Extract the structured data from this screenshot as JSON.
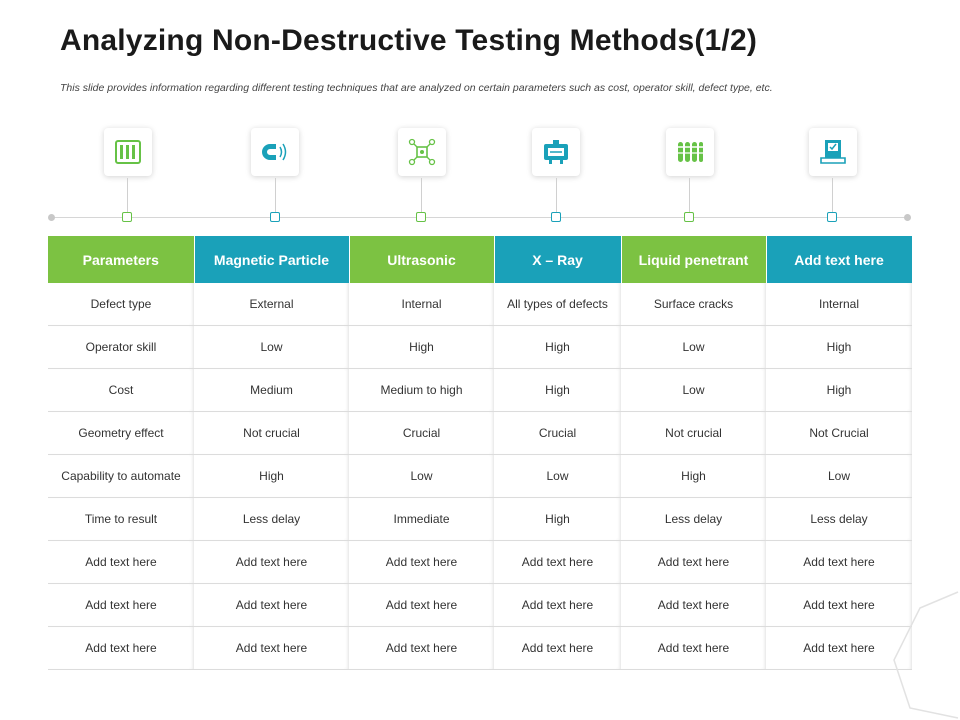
{
  "title": "Analyzing Non-Destructive Testing Methods(1/2)",
  "subtitle": "This slide provides information regarding different testing techniques that are analyzed on certain parameters such as cost, operator skill, defect type, etc.",
  "colors": {
    "green": "#7cc242",
    "teal": "#1aa1b9",
    "green_icon": "#66c246",
    "teal_icon": "#1aa1b9"
  },
  "icons": [
    "panel-icon",
    "magnet-icon",
    "ultrasonic-icon",
    "xray-machine-icon",
    "test-tubes-icon",
    "report-icon"
  ],
  "table": {
    "headers": [
      "Parameters",
      "Magnetic Particle",
      "Ultrasonic",
      "X – Ray",
      "Liquid penetrant",
      "Add text here"
    ],
    "rows": [
      [
        "Defect type",
        "External",
        "Internal",
        "All types of defects",
        "Surface cracks",
        "Internal"
      ],
      [
        "Operator skill",
        "Low",
        "High",
        "High",
        "Low",
        "High"
      ],
      [
        "Cost",
        "Medium",
        "Medium to high",
        "High",
        "Low",
        "High"
      ],
      [
        "Geometry effect",
        "Not crucial",
        "Crucial",
        "Crucial",
        "Not crucial",
        "Not Crucial"
      ],
      [
        "Capability to automate",
        "High",
        "Low",
        "Low",
        "High",
        "Low"
      ],
      [
        "Time to result",
        "Less delay",
        "Immediate",
        "High",
        "Less delay",
        "Less delay"
      ],
      [
        "Add text here",
        "Add text here",
        "Add text here",
        "Add text here",
        "Add text here",
        "Add text here"
      ],
      [
        "Add text here",
        "Add text here",
        "Add text here",
        "Add text here",
        "Add text here",
        "Add text here"
      ],
      [
        "Add text here",
        "Add text here",
        "Add text here",
        "Add text here",
        "Add text here",
        "Add text here"
      ]
    ]
  }
}
